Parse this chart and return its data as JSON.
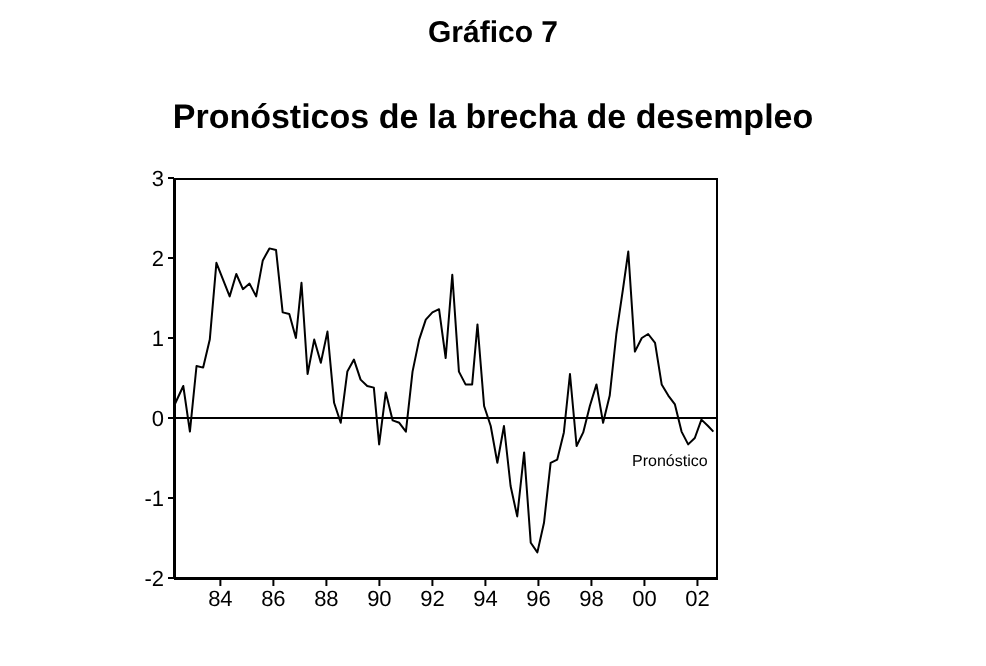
{
  "chart_data": {
    "type": "line",
    "title": "Gráfico 7",
    "subtitle": "Pronósticos de la brecha de desempleo",
    "x": [
      1982.25,
      1982.6,
      1982.85,
      1983.1,
      1983.35,
      1983.6,
      1983.85,
      1984.35,
      1984.6,
      1984.85,
      1985.1,
      1985.35,
      1985.6,
      1985.85,
      1986.1,
      1986.35,
      1986.6,
      1986.85,
      1987.06,
      1987.29,
      1987.54,
      1987.79,
      1988.04,
      1988.29,
      1988.54,
      1988.79,
      1989.04,
      1989.29,
      1989.54,
      1989.79,
      1989.99,
      1990.24,
      1990.5,
      1990.75,
      1991.0,
      1991.25,
      1991.5,
      1991.75,
      1992.0,
      1992.25,
      1992.5,
      1992.75,
      1993.0,
      1993.25,
      1993.5,
      1993.7,
      1993.95,
      1994.2,
      1994.45,
      1994.7,
      1994.95,
      1995.2,
      1995.46,
      1995.71,
      1995.96,
      1996.21,
      1996.46,
      1996.71,
      1996.96,
      1997.19,
      1997.44,
      1997.69,
      1997.94,
      1998.19,
      1998.44,
      1998.69,
      1998.94,
      1999.19,
      1999.39,
      1999.64,
      1999.9,
      2000.14,
      2000.4,
      2000.65,
      2000.9,
      2001.15,
      2001.4,
      2001.65,
      2001.9,
      2002.15,
      2002.4,
      2002.6
    ],
    "series": [
      {
        "color": "#000000",
        "values": [
          0.15,
          0.4,
          -0.17,
          0.65,
          0.63,
          0.98,
          1.94,
          1.52,
          1.8,
          1.61,
          1.68,
          1.52,
          1.97,
          2.12,
          2.1,
          1.32,
          1.3,
          1.0,
          1.69,
          0.55,
          0.98,
          0.69,
          1.08,
          0.19,
          -0.06,
          0.58,
          0.73,
          0.48,
          0.4,
          0.38,
          -0.33,
          0.32,
          -0.03,
          -0.06,
          -0.17,
          0.58,
          0.98,
          1.23,
          1.32,
          1.36,
          0.75,
          1.79,
          0.58,
          0.42,
          0.42,
          1.17,
          0.15,
          -0.1,
          -0.56,
          -0.1,
          -0.85,
          -1.23,
          -0.43,
          -1.56,
          -1.68,
          -1.31,
          -0.56,
          -0.52,
          -0.18,
          0.55,
          -0.35,
          -0.18,
          0.15,
          0.42,
          -0.06,
          0.28,
          1.05,
          1.61,
          2.08,
          0.83,
          1.0,
          1.05,
          0.94,
          0.42,
          0.28,
          0.17,
          -0.17,
          -0.33,
          -0.25,
          -0.02,
          -0.1,
          -0.17
        ]
      }
    ],
    "xlim": [
      1982.25,
      2002.7
    ],
    "xticks": [
      {
        "value": 1984,
        "label": "84"
      },
      {
        "value": 1986,
        "label": "86"
      },
      {
        "value": 1988,
        "label": "88"
      },
      {
        "value": 1990,
        "label": "90"
      },
      {
        "value": 1992,
        "label": "92"
      },
      {
        "value": 1994,
        "label": "94"
      },
      {
        "value": 1996,
        "label": "96"
      },
      {
        "value": 1998,
        "label": "98"
      },
      {
        "value": 2000,
        "label": "00"
      },
      {
        "value": 2002,
        "label": "02"
      }
    ],
    "ylim": [
      -2,
      3
    ],
    "yticks": [
      -2,
      -1,
      0,
      1,
      2,
      3
    ],
    "ref_lines": [
      {
        "axis": "y",
        "value": 0,
        "color": "#000000"
      }
    ],
    "annotations": [
      "Pronóstico"
    ],
    "grid": false,
    "legend": false,
    "marker": "none",
    "line_style": "solid"
  }
}
